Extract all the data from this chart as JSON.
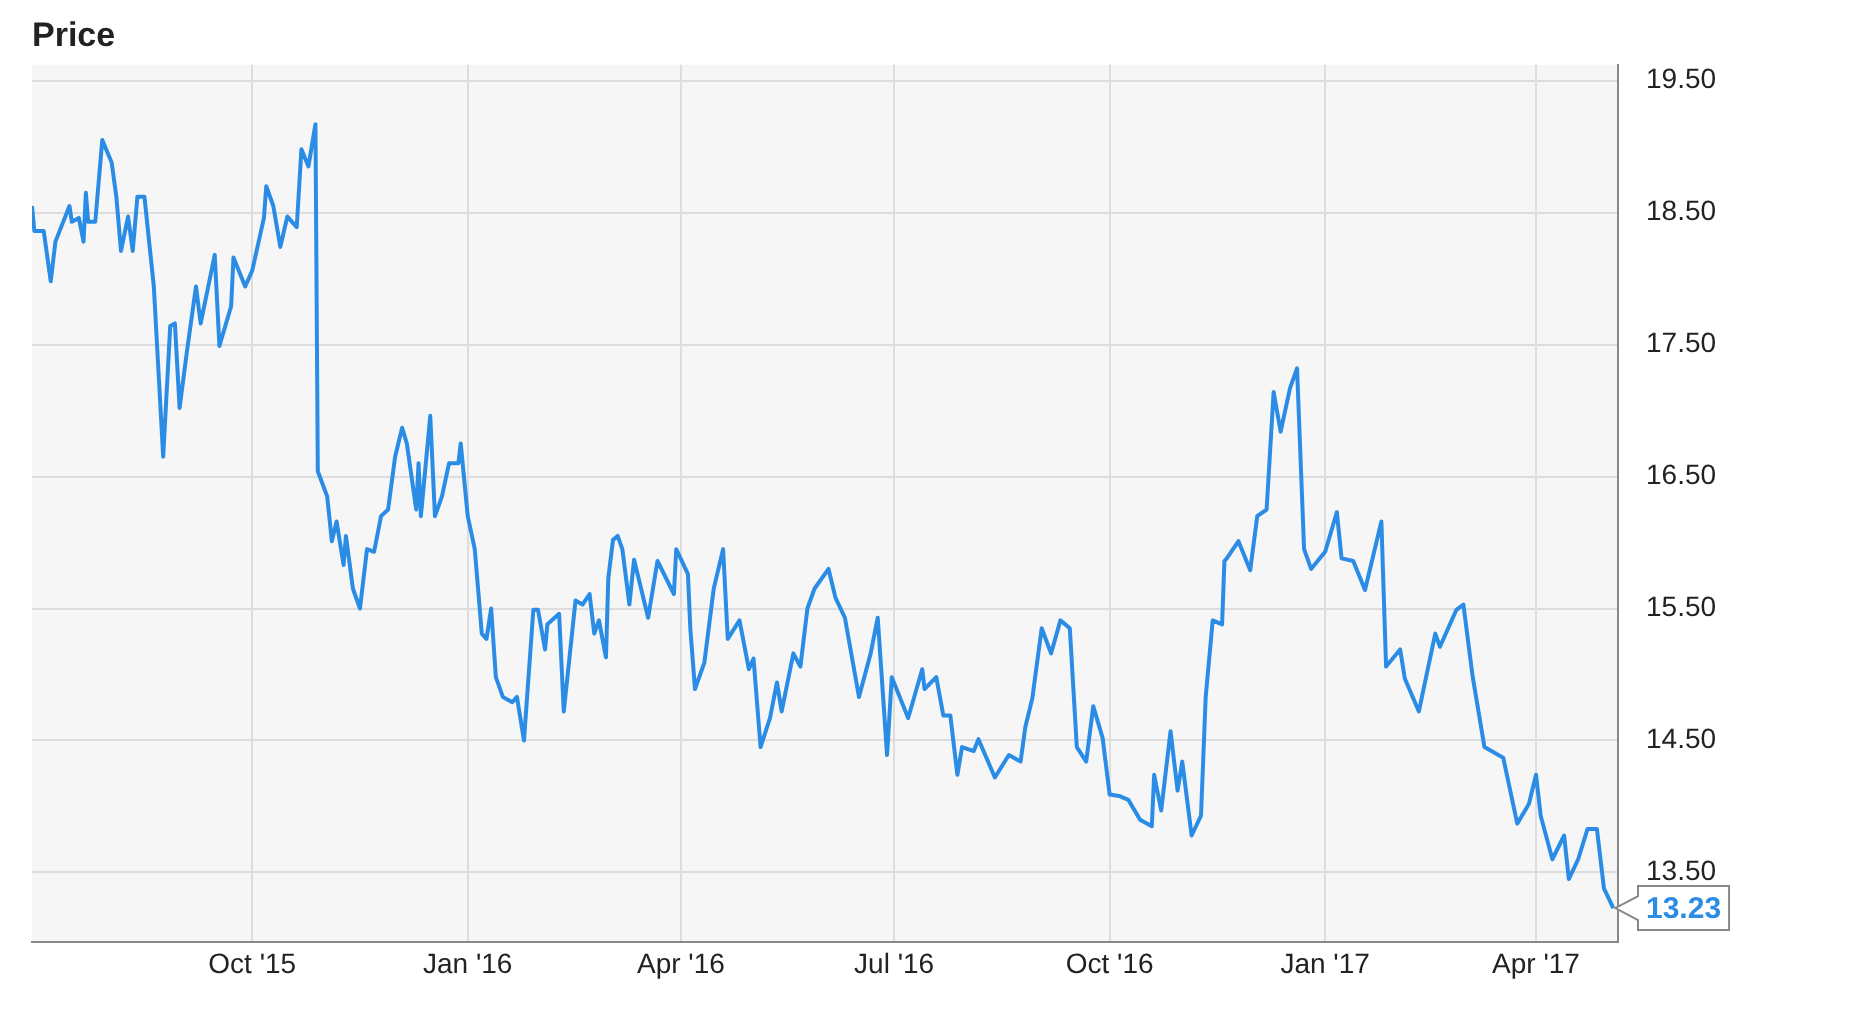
{
  "chart_data": {
    "type": "line",
    "title": "Price",
    "x": [
      "2015-06-29",
      "2015-06-30",
      "2015-07-04",
      "2015-07-07",
      "2015-07-09",
      "2015-07-15",
      "2015-07-16",
      "2015-07-19",
      "2015-07-21",
      "2015-07-22",
      "2015-07-23",
      "2015-07-26",
      "2015-07-29",
      "2015-08-02",
      "2015-08-04",
      "2015-08-06",
      "2015-08-09",
      "2015-08-11",
      "2015-08-13",
      "2015-08-16",
      "2015-08-20",
      "2015-08-24",
      "2015-08-27",
      "2015-08-29",
      "2015-08-31",
      "2015-09-03",
      "2015-09-07",
      "2015-09-09",
      "2015-09-15",
      "2015-09-17",
      "2015-09-22",
      "2015-09-23",
      "2015-09-28",
      "2015-10-01",
      "2015-10-06",
      "2015-10-07",
      "2015-10-10",
      "2015-10-13",
      "2015-10-16",
      "2015-10-20",
      "2015-10-22",
      "2015-10-25",
      "2015-10-28",
      "2015-10-29",
      "2015-11-02",
      "2015-11-04",
      "2015-11-06",
      "2015-11-09",
      "2015-11-10",
      "2015-11-13",
      "2015-11-16",
      "2015-11-19",
      "2015-11-22",
      "2015-11-25",
      "2015-11-28",
      "2015-12-01",
      "2015-12-04",
      "2015-12-06",
      "2015-12-10",
      "2015-12-11",
      "2015-12-12",
      "2015-12-16",
      "2015-12-18",
      "2015-12-21",
      "2015-12-24",
      "2015-12-28",
      "2015-12-29",
      "2016-01-01",
      "2016-01-04",
      "2016-01-07",
      "2016-01-09",
      "2016-01-11",
      "2016-01-13",
      "2016-01-16",
      "2016-01-20",
      "2016-01-22",
      "2016-01-25",
      "2016-01-29",
      "2016-01-31",
      "2016-02-03",
      "2016-02-04",
      "2016-02-09",
      "2016-02-11",
      "2016-02-16",
      "2016-02-19",
      "2016-02-22",
      "2016-02-24",
      "2016-02-26",
      "2016-02-29",
      "2016-03-01",
      "2016-03-03",
      "2016-03-05",
      "2016-03-07",
      "2016-03-10",
      "2016-03-12",
      "2016-03-18",
      "2016-03-22",
      "2016-03-29",
      "2016-03-30",
      "2016-04-04",
      "2016-04-05",
      "2016-04-07",
      "2016-04-11",
      "2016-04-15",
      "2016-04-19",
      "2016-04-21",
      "2016-04-26",
      "2016-04-30",
      "2016-05-02",
      "2016-05-05",
      "2016-05-09",
      "2016-05-12",
      "2016-05-14",
      "2016-05-19",
      "2016-05-22",
      "2016-05-25",
      "2016-05-28",
      "2016-06-03",
      "2016-06-06",
      "2016-06-10",
      "2016-06-16",
      "2016-06-21",
      "2016-06-24",
      "2016-06-28",
      "2016-06-30",
      "2016-07-07",
      "2016-07-13",
      "2016-07-14",
      "2016-07-19",
      "2016-07-22",
      "2016-07-25",
      "2016-07-28",
      "2016-07-30",
      "2016-08-04",
      "2016-08-06",
      "2016-08-13",
      "2016-08-19",
      "2016-08-24",
      "2016-08-26",
      "2016-08-29",
      "2016-09-02",
      "2016-09-06",
      "2016-09-10",
      "2016-09-14",
      "2016-09-17",
      "2016-09-21",
      "2016-09-24",
      "2016-09-28",
      "2016-10-01",
      "2016-10-05",
      "2016-10-09",
      "2016-10-14",
      "2016-10-19",
      "2016-10-20",
      "2016-10-23",
      "2016-10-27",
      "2016-10-30",
      "2016-11-01",
      "2016-11-05",
      "2016-11-09",
      "2016-11-11",
      "2016-11-14",
      "2016-11-18",
      "2016-11-19",
      "2016-11-20",
      "2016-11-25",
      "2016-11-30",
      "2016-12-03",
      "2016-12-07",
      "2016-12-10",
      "2016-12-13",
      "2016-12-17",
      "2016-12-20",
      "2016-12-23",
      "2016-12-26",
      "2017-01-01",
      "2017-01-06",
      "2017-01-08",
      "2017-01-13",
      "2017-01-18",
      "2017-01-25",
      "2017-01-27",
      "2017-02-02",
      "2017-02-04",
      "2017-02-10",
      "2017-02-17",
      "2017-02-19",
      "2017-02-26",
      "2017-03-01",
      "2017-03-05",
      "2017-03-10",
      "2017-03-18",
      "2017-03-24",
      "2017-03-29",
      "2017-04-01",
      "2017-04-03",
      "2017-04-08",
      "2017-04-13",
      "2017-04-15",
      "2017-04-19",
      "2017-04-23",
      "2017-04-27",
      "2017-04-30",
      "2017-05-04"
    ],
    "series": [
      {
        "color": "#2b8ce6",
        "values": [
          18.55,
          18.36,
          18.36,
          17.98,
          18.28,
          18.55,
          18.43,
          18.46,
          18.28,
          18.65,
          18.43,
          18.43,
          19.05,
          18.88,
          18.62,
          18.21,
          18.47,
          18.21,
          18.62,
          18.62,
          17.94,
          16.65,
          17.64,
          17.66,
          17.02,
          17.43,
          17.94,
          17.66,
          18.18,
          17.49,
          17.79,
          18.16,
          17.94,
          18.06,
          18.46,
          18.7,
          18.55,
          18.24,
          18.47,
          18.39,
          18.98,
          18.85,
          19.17,
          16.54,
          16.35,
          16.01,
          16.16,
          15.83,
          16.05,
          15.65,
          15.5,
          15.95,
          15.93,
          16.2,
          16.25,
          16.65,
          16.87,
          16.75,
          16.25,
          16.6,
          16.2,
          16.96,
          16.2,
          16.35,
          16.6,
          16.6,
          16.75,
          16.2,
          15.95,
          15.31,
          15.27,
          15.5,
          14.98,
          14.83,
          14.79,
          14.83,
          14.5,
          15.49,
          15.49,
          15.19,
          15.38,
          15.46,
          14.72,
          15.56,
          15.53,
          15.61,
          15.31,
          15.41,
          15.13,
          15.73,
          16.02,
          16.05,
          15.95,
          15.53,
          15.87,
          15.43,
          15.86,
          15.61,
          15.95,
          15.76,
          15.35,
          14.89,
          15.09,
          15.65,
          15.95,
          15.27,
          15.41,
          15.04,
          15.12,
          14.45,
          14.67,
          14.94,
          14.72,
          15.16,
          15.06,
          15.5,
          15.65,
          15.8,
          15.58,
          15.43,
          14.83,
          15.16,
          15.43,
          14.39,
          14.98,
          14.67,
          15.04,
          14.89,
          14.98,
          14.69,
          14.69,
          14.24,
          14.45,
          14.42,
          14.51,
          14.22,
          14.39,
          14.34,
          14.6,
          14.82,
          15.35,
          15.16,
          15.41,
          15.35,
          14.45,
          14.34,
          14.76,
          14.52,
          14.09,
          14.08,
          14.05,
          13.9,
          13.85,
          14.24,
          13.97,
          14.57,
          14.12,
          14.34,
          13.78,
          13.93,
          14.83,
          15.41,
          15.38,
          15.86,
          15.88,
          16.01,
          15.79,
          16.2,
          16.25,
          17.14,
          16.84,
          17.17,
          17.32,
          15.95,
          15.8,
          15.93,
          16.23,
          15.88,
          15.86,
          15.64,
          16.16,
          15.06,
          15.19,
          14.97,
          14.72,
          15.31,
          15.21,
          15.49,
          15.53,
          14.98,
          14.45,
          14.37,
          13.87,
          14.02,
          14.24,
          13.93,
          13.6,
          13.78,
          13.45,
          13.6,
          13.83,
          13.83,
          13.38,
          13.23
        ]
      }
    ],
    "xlim": [
      "2015-06-29",
      "2017-05-06"
    ],
    "xticks": [
      {
        "value": "2015-10-01",
        "label": "Oct '15"
      },
      {
        "value": "2016-01-01",
        "label": "Jan '16"
      },
      {
        "value": "2016-04-01",
        "label": "Apr '16"
      },
      {
        "value": "2016-07-01",
        "label": "Jul '16"
      },
      {
        "value": "2016-10-01",
        "label": "Oct '16"
      },
      {
        "value": "2017-01-01",
        "label": "Jan '17"
      },
      {
        "value": "2017-04-01",
        "label": "Apr '17"
      }
    ],
    "ylim": [
      12.97,
      19.62
    ],
    "yticks": [
      {
        "value": 13.5,
        "label": "13.50"
      },
      {
        "value": 14.5,
        "label": "14.50"
      },
      {
        "value": 15.5,
        "label": "15.50"
      },
      {
        "value": 16.5,
        "label": "16.50"
      },
      {
        "value": 17.5,
        "label": "17.50"
      },
      {
        "value": 18.5,
        "label": "18.50"
      },
      {
        "value": 19.5,
        "label": "19.50"
      }
    ],
    "annotations": [
      "13.23"
    ],
    "grid": true,
    "legend": false,
    "marker": "none",
    "line_style": "solid"
  }
}
